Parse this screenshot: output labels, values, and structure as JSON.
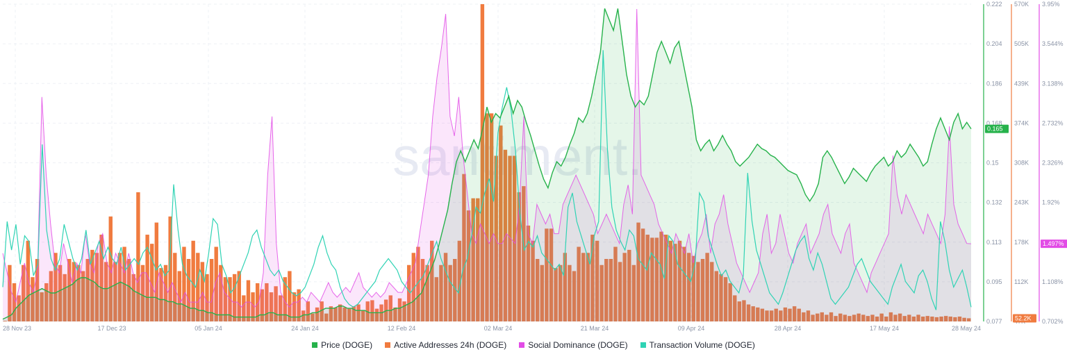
{
  "watermark": "santiment.",
  "chart_data": {
    "type": "bar+line+area",
    "x_ticks": [
      "28 Nov 23",
      "17 Dec 23",
      "05 Jan 24",
      "24 Jan 24",
      "12 Feb 24",
      "02 Mar 24",
      "21 Mar 24",
      "09 Apr 24",
      "28 Apr 24",
      "17 May 24",
      "28 May 24"
    ],
    "axes": {
      "price": {
        "ticks": [
          "0.222",
          "0.204",
          "0.186",
          "0.168",
          "0.15",
          "0.132",
          "0.113",
          "0.095",
          "0.077"
        ],
        "range": [
          0.077,
          0.222
        ],
        "current": "0.165",
        "color": "#26b24b"
      },
      "active_addresses": {
        "ticks": [
          "570K",
          "505K",
          "439K",
          "374K",
          "308K",
          "243K",
          "178K",
          "112K",
          "47K"
        ],
        "range": [
          47000,
          570000
        ],
        "current": "52.2K",
        "color": "#f07b3f"
      },
      "social_dominance": {
        "ticks": [
          "3.95%",
          "3.544%",
          "3.138%",
          "2.732%",
          "2.326%",
          "1.92%",
          "1.514%",
          "1.108%",
          "0.702%"
        ],
        "range": [
          0.702,
          3.95
        ],
        "current": "1.497%",
        "color": "#e24ce6"
      }
    },
    "series": [
      {
        "name": "Price (DOGE)",
        "color": "#26b24b",
        "axis": "price",
        "values": [
          0.078,
          0.079,
          0.08,
          0.083,
          0.085,
          0.087,
          0.089,
          0.09,
          0.091,
          0.092,
          0.091,
          0.09,
          0.09,
          0.091,
          0.092,
          0.093,
          0.094,
          0.096,
          0.097,
          0.097,
          0.096,
          0.095,
          0.093,
          0.092,
          0.092,
          0.093,
          0.094,
          0.095,
          0.094,
          0.093,
          0.091,
          0.09,
          0.089,
          0.088,
          0.088,
          0.088,
          0.087,
          0.087,
          0.086,
          0.086,
          0.085,
          0.085,
          0.084,
          0.083,
          0.083,
          0.082,
          0.082,
          0.081,
          0.081,
          0.08,
          0.08,
          0.08,
          0.08,
          0.079,
          0.079,
          0.079,
          0.079,
          0.079,
          0.079,
          0.08,
          0.08,
          0.081,
          0.081,
          0.08,
          0.08,
          0.08,
          0.079,
          0.079,
          0.079,
          0.08,
          0.08,
          0.081,
          0.081,
          0.082,
          0.083,
          0.083,
          0.083,
          0.084,
          0.084,
          0.083,
          0.083,
          0.082,
          0.082,
          0.082,
          0.081,
          0.081,
          0.081,
          0.081,
          0.082,
          0.082,
          0.083,
          0.083,
          0.084,
          0.085,
          0.086,
          0.088,
          0.09,
          0.095,
          0.1,
          0.105,
          0.112,
          0.12,
          0.128,
          0.14,
          0.15,
          0.155,
          0.15,
          0.155,
          0.16,
          0.156,
          0.165,
          0.175,
          0.168,
          0.172,
          0.17,
          0.175,
          0.18,
          0.172,
          0.178,
          0.175,
          0.168,
          0.162,
          0.155,
          0.148,
          0.142,
          0.138,
          0.145,
          0.15,
          0.148,
          0.152,
          0.158,
          0.163,
          0.17,
          0.168,
          0.172,
          0.18,
          0.19,
          0.2,
          0.22,
          0.215,
          0.21,
          0.22,
          0.205,
          0.19,
          0.18,
          0.175,
          0.178,
          0.176,
          0.18,
          0.19,
          0.2,
          0.205,
          0.2,
          0.195,
          0.202,
          0.205,
          0.195,
          0.185,
          0.175,
          0.16,
          0.155,
          0.158,
          0.16,
          0.155,
          0.158,
          0.162,
          0.158,
          0.155,
          0.15,
          0.148,
          0.15,
          0.152,
          0.155,
          0.158,
          0.156,
          0.155,
          0.153,
          0.152,
          0.15,
          0.148,
          0.146,
          0.145,
          0.144,
          0.14,
          0.135,
          0.132,
          0.135,
          0.14,
          0.152,
          0.155,
          0.152,
          0.148,
          0.144,
          0.14,
          0.143,
          0.147,
          0.145,
          0.143,
          0.141,
          0.145,
          0.148,
          0.15,
          0.152,
          0.148,
          0.15,
          0.155,
          0.152,
          0.154,
          0.158,
          0.155,
          0.152,
          0.148,
          0.15,
          0.158,
          0.165,
          0.17,
          0.165,
          0.16,
          0.168,
          0.172,
          0.165,
          0.168,
          0.165
        ]
      },
      {
        "name": "Active Addresses 24h (DOGE)",
        "color": "#f07b3f",
        "axis": "active_addresses",
        "render": "bars",
        "values": [
          48000,
          140000,
          110000,
          90000,
          140000,
          180000,
          120000,
          150000,
          95000,
          110000,
          130000,
          160000,
          140000,
          125000,
          150000,
          145000,
          140000,
          130000,
          150000,
          165000,
          160000,
          190000,
          145000,
          220000,
          145000,
          160000,
          170000,
          150000,
          125000,
          260000,
          140000,
          190000,
          175000,
          210000,
          135000,
          140000,
          220000,
          160000,
          130000,
          170000,
          150000,
          180000,
          160000,
          145000,
          125000,
          150000,
          170000,
          140000,
          120000,
          120000,
          125000,
          130000,
          90000,
          115000,
          95000,
          110000,
          100000,
          110000,
          95000,
          105000,
          90000,
          120000,
          130000,
          95000,
          100000,
          65000,
          80000,
          60000,
          70000,
          80000,
          60000,
          72000,
          70000,
          75000,
          70000,
          68000,
          72000,
          75000,
          65000,
          80000,
          82000,
          68000,
          75000,
          83000,
          90000,
          70000,
          85000,
          80000,
          140000,
          160000,
          170000,
          150000,
          140000,
          180000,
          120000,
          140000,
          160000,
          140000,
          150000,
          180000,
          290000,
          230000,
          250000,
          250000,
          570000,
          390000,
          390000,
          320000,
          370000,
          330000,
          320000,
          320000,
          260000,
          270000,
          205000,
          180000,
          150000,
          140000,
          200000,
          200000,
          135000,
          140000,
          160000,
          140000,
          130000,
          170000,
          160000,
          160000,
          190000,
          180000,
          140000,
          150000,
          150000,
          170000,
          145000,
          160000,
          165000,
          140000,
          210000,
          200000,
          190000,
          185000,
          185000,
          195000,
          190000,
          180000,
          175000,
          180000,
          170000,
          160000,
          155000,
          145000,
          150000,
          160000,
          145000,
          130000,
          125000,
          120000,
          110000,
          90000,
          80000,
          82000,
          75000,
          72000,
          70000,
          68000,
          65000,
          65000,
          68000,
          65000,
          70000,
          68000,
          72000,
          68000,
          62000,
          65000,
          58000,
          60000,
          62000,
          58000,
          62000,
          56000,
          60000,
          58000,
          56000,
          58000,
          60000,
          58000,
          56000,
          58000,
          55000,
          60000,
          55000,
          62000,
          58000,
          60000,
          56000,
          58000,
          55000,
          58000,
          55000,
          56000,
          55000,
          54000,
          55000,
          56000,
          55000,
          54000,
          55000,
          53000,
          52200
        ]
      },
      {
        "name": "Social Dominance (DOGE)",
        "color": "#e24ce6",
        "axis": "social_dominance",
        "render": "area",
        "values": [
          1.4,
          1.2,
          1.0,
          0.9,
          1.1,
          1.3,
          1.1,
          1.0,
          1.2,
          3.0,
          2.2,
          1.7,
          1.3,
          1.2,
          1.5,
          1.3,
          1.1,
          1.3,
          1.2,
          1.6,
          1.3,
          1.2,
          1.5,
          1.6,
          1.3,
          1.2,
          1.4,
          1.3,
          1.2,
          1.4,
          1.2,
          1.1,
          1.2,
          1.2,
          1.1,
          1.0,
          1.2,
          1.1,
          1.0,
          1.1,
          1.0,
          0.9,
          1.0,
          0.9,
          0.9,
          0.9,
          1.0,
          0.9,
          0.9,
          1.1,
          1.2,
          1.0,
          0.95,
          0.9,
          0.9,
          0.85,
          0.9,
          0.9,
          0.85,
          0.9,
          1.2,
          2.2,
          2.8,
          1.5,
          1.0,
          0.9,
          0.85,
          0.9,
          0.9,
          0.95,
          0.9,
          1.0,
          0.95,
          0.9,
          1.0,
          1.1,
          1.0,
          0.95,
          1.0,
          1.05,
          1.0,
          1.1,
          1.2,
          1.05,
          1.0,
          0.95,
          1.0,
          0.95,
          1.0,
          1.1,
          1.05,
          1.0,
          1.0,
          1.1,
          1.2,
          1.3,
          1.6,
          1.9,
          2.2,
          2.8,
          3.2,
          3.5,
          3.85,
          2.8,
          2.6,
          3.0,
          2.4,
          2.0,
          1.6,
          1.5,
          1.7,
          1.6,
          1.5,
          1.6,
          1.5,
          1.5,
          1.6,
          1.55,
          1.5,
          1.9,
          2.8,
          1.6,
          1.5,
          1.9,
          1.8,
          1.7,
          1.8,
          1.6,
          1.6,
          1.9,
          2.0,
          2.1,
          2.2,
          2.1,
          2.0,
          1.9,
          1.8,
          1.6,
          1.7,
          1.8,
          1.7,
          1.6,
          1.5,
          1.9,
          2.1,
          1.8,
          3.9,
          2.2,
          2.1,
          2.0,
          1.9,
          1.7,
          1.6,
          1.5,
          1.4,
          1.6,
          1.5,
          1.4,
          1.6,
          1.3,
          1.5,
          1.6,
          1.8,
          1.4,
          1.7,
          1.8,
          2.0,
          1.7,
          1.5,
          1.3,
          1.2,
          1.1,
          1.0,
          1.1,
          1.2,
          1.6,
          1.8,
          1.4,
          1.5,
          1.8,
          1.6,
          1.4,
          1.3,
          1.5,
          1.6,
          1.7,
          1.4,
          1.5,
          1.6,
          1.8,
          1.9,
          1.6,
          1.5,
          1.4,
          1.6,
          1.7,
          1.3,
          1.2,
          1.1,
          1.0,
          1.2,
          1.3,
          1.4,
          1.5,
          1.6,
          2.4,
          2.0,
          1.8,
          2.0,
          1.9,
          1.8,
          1.7,
          1.6,
          1.8,
          1.7,
          1.6,
          1.5,
          1.8,
          2.7,
          1.9,
          1.7,
          1.6,
          1.5,
          1.497
        ]
      },
      {
        "name": "Transaction Volume (DOGE)",
        "color": "#2fd3b4",
        "render": "line",
        "values": [
          0.12,
          0.35,
          0.25,
          0.34,
          0.2,
          0.3,
          0.28,
          0.16,
          0.2,
          0.62,
          0.32,
          0.22,
          0.18,
          0.22,
          0.34,
          0.28,
          0.22,
          0.18,
          0.22,
          0.32,
          0.2,
          0.24,
          0.28,
          0.22,
          0.26,
          0.22,
          0.2,
          0.26,
          0.18,
          0.2,
          0.22,
          0.2,
          0.24,
          0.26,
          0.22,
          0.18,
          0.2,
          0.16,
          0.18,
          0.48,
          0.32,
          0.2,
          0.16,
          0.14,
          0.12,
          0.18,
          0.14,
          0.24,
          0.36,
          0.34,
          0.2,
          0.16,
          0.1,
          0.12,
          0.16,
          0.2,
          0.24,
          0.3,
          0.32,
          0.26,
          0.22,
          0.18,
          0.16,
          0.18,
          0.14,
          0.12,
          0.1,
          0.09,
          0.1,
          0.12,
          0.16,
          0.2,
          0.26,
          0.3,
          0.24,
          0.2,
          0.18,
          0.12,
          0.08,
          0.06,
          0.05,
          0.06,
          0.08,
          0.1,
          0.12,
          0.14,
          0.18,
          0.2,
          0.22,
          0.2,
          0.18,
          0.14,
          0.12,
          0.1,
          0.12,
          0.14,
          0.16,
          0.2,
          0.24,
          0.28,
          0.22,
          0.18,
          0.14,
          0.12,
          0.1,
          0.18,
          0.22,
          0.3,
          0.4,
          0.38,
          0.45,
          0.5,
          0.42,
          0.66,
          0.75,
          0.82,
          0.74,
          0.6,
          0.38,
          0.25,
          0.28,
          0.26,
          0.3,
          0.24,
          0.22,
          0.2,
          0.18,
          0.2,
          0.16,
          0.4,
          0.45,
          0.35,
          0.3,
          0.25,
          0.2,
          0.3,
          0.35,
          0.95,
          0.6,
          0.4,
          0.32,
          0.28,
          0.25,
          0.32,
          0.3,
          0.22,
          0.2,
          0.18,
          0.24,
          0.22,
          0.2,
          0.15,
          0.3,
          0.28,
          0.2,
          0.18,
          0.16,
          0.14,
          0.2,
          0.45,
          0.42,
          0.3,
          0.25,
          0.2,
          0.16,
          0.18,
          0.14,
          0.12,
          0.1,
          0.16,
          0.52,
          0.35,
          0.25,
          0.2,
          0.15,
          0.1,
          0.08,
          0.06,
          0.1,
          0.15,
          0.2,
          0.25,
          0.28,
          0.3,
          0.22,
          0.18,
          0.24,
          0.2,
          0.14,
          0.08,
          0.06,
          0.08,
          0.1,
          0.12,
          0.16,
          0.2,
          0.22,
          0.18,
          0.14,
          0.12,
          0.1,
          0.08,
          0.06,
          0.12,
          0.16,
          0.2,
          0.14,
          0.12,
          0.1,
          0.16,
          0.18,
          0.14,
          0.08,
          0.04,
          0.35,
          0.28,
          0.18,
          0.12,
          0.15,
          0.18,
          0.12,
          0.05
        ]
      }
    ],
    "legend_position": "bottom-center",
    "grid": true
  }
}
